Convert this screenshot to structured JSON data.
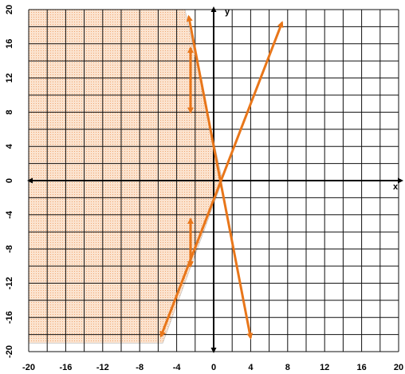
{
  "chart_data": {
    "type": "line",
    "title": "",
    "xlabel": "x",
    "ylabel": "y",
    "xlim": [
      -20,
      20
    ],
    "ylim": [
      -20,
      20
    ],
    "grid": true,
    "grid_step": 2,
    "x_ticks": [
      "-20",
      "-16",
      "-12",
      "-8",
      "-4",
      "0",
      "4",
      "8",
      "12",
      "16",
      "20"
    ],
    "y_ticks": [
      "20",
      "16",
      "12",
      "8",
      "4",
      "0",
      "-4",
      "-8",
      "-12",
      "-16",
      "-20"
    ],
    "series": [
      {
        "x": [
          -5.7,
          7.4
        ],
        "y": [
          -18.2,
          18.5
        ],
        "color": "#e8761a"
      },
      {
        "x": [
          -2.7,
          4.0
        ],
        "y": [
          19.2,
          -18.4
        ],
        "color": "#e8761a"
      }
    ],
    "shaded_region": {
      "color": "#f4b98a",
      "polygon": [
        [
          -20,
          20
        ],
        [
          -3.1,
          20
        ],
        [
          0.95,
          0
        ],
        [
          -5.5,
          -19
        ],
        [
          -20,
          -19
        ]
      ]
    },
    "annotation_arrows": [
      {
        "from": [
          -2.5,
          15.5
        ],
        "to": [
          -2.5,
          8.0
        ],
        "heads": "both"
      },
      {
        "from": [
          -2.5,
          -4.5
        ],
        "to": [
          -2.5,
          -10.0
        ],
        "heads": "both"
      }
    ],
    "colors": {
      "line": "#e8761a",
      "shade": "#f4b98a",
      "grid": "#111111"
    }
  }
}
